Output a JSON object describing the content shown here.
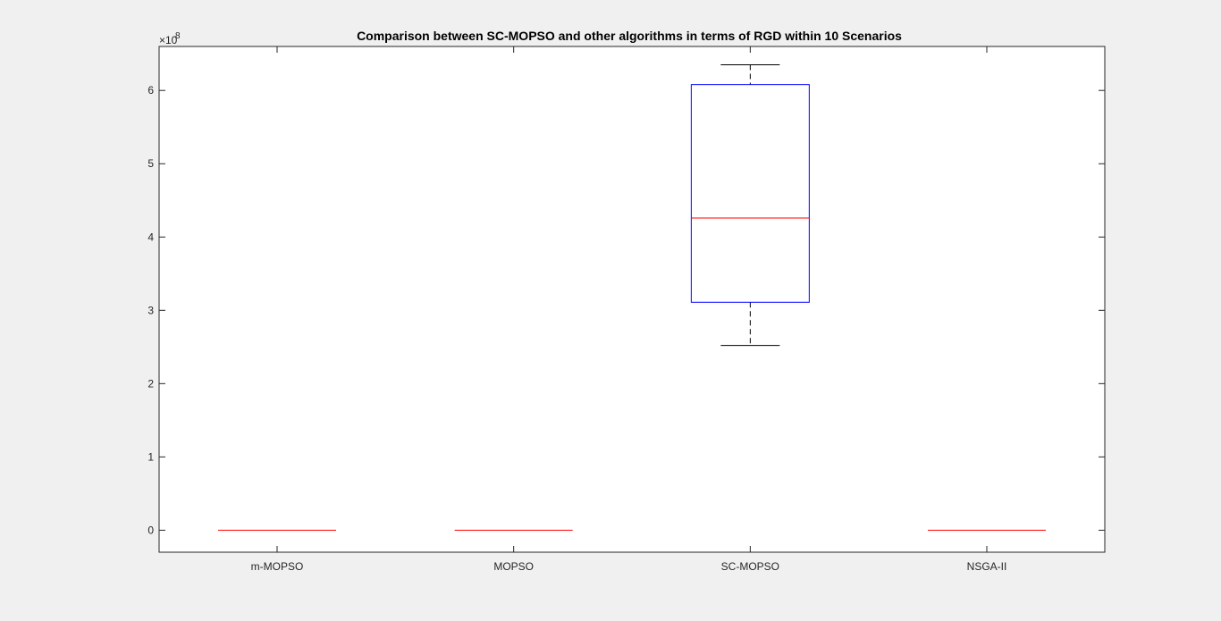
{
  "chart_data": {
    "type": "boxplot",
    "title": "Comparison between SC-MOPSO and other algorithms in terms of RGD within 10 Scenarios",
    "xlabel": "",
    "ylabel": "",
    "y_exponent_base": "×10",
    "y_exponent_power": "8",
    "y_multiplier": 100000000,
    "ylim": [
      -30000000.0,
      660000000.0
    ],
    "y_ticks": [
      0,
      1,
      2,
      3,
      4,
      5,
      6
    ],
    "y_tick_labels": [
      "0",
      "1",
      "2",
      "3",
      "4",
      "5",
      "6"
    ],
    "categories": [
      "m-MOPSO",
      "MOPSO",
      "SC-MOPSO",
      "NSGA-II"
    ],
    "boxes": [
      {
        "label": "m-MOPSO",
        "min": 0,
        "q1": 0,
        "median": 0,
        "q3": 0,
        "max": 0
      },
      {
        "label": "MOPSO",
        "min": 0,
        "q1": 0,
        "median": 0,
        "q3": 0,
        "max": 0
      },
      {
        "label": "SC-MOPSO",
        "min": 252000000.0,
        "q1": 311000000.0,
        "median": 426000000.0,
        "q3": 608000000.0,
        "max": 635000000.0
      },
      {
        "label": "NSGA-II",
        "min": 0,
        "q1": 0,
        "median": 0,
        "q3": 0,
        "max": 0
      }
    ],
    "grid": false,
    "colors": {
      "box": "#0000ff",
      "median": "#ff0000",
      "whisker": "#000000",
      "axes": "#262626",
      "background": "#ffffff",
      "figure": "#f0f0f0"
    }
  }
}
